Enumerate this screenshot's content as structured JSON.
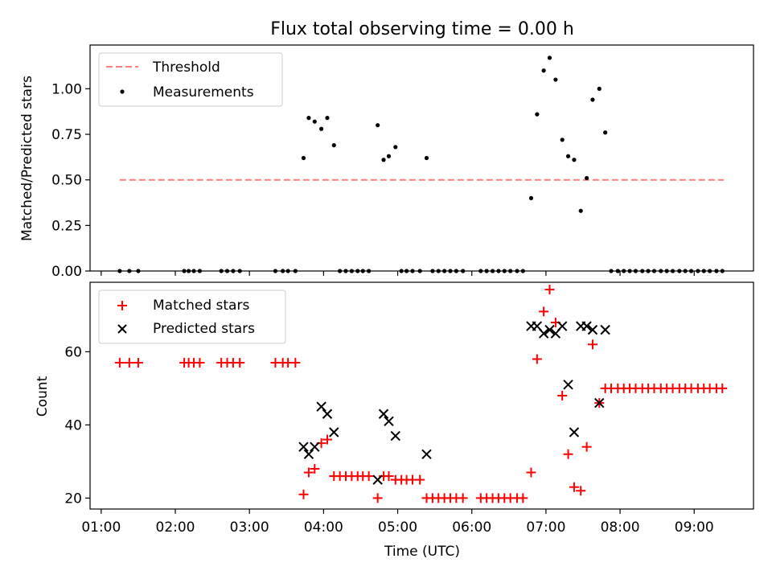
{
  "title": "Flux total observing time = 0.00 h",
  "chart_data": [
    {
      "type": "scatter",
      "ylabel": "Matched/Predicted stars",
      "xlim": [
        0.85,
        9.8
      ],
      "ylim": [
        0,
        1.24
      ],
      "yticks": [
        {
          "v": 0,
          "label": "0.00"
        },
        {
          "v": 0.25,
          "label": "0.25"
        },
        {
          "v": 0.5,
          "label": "0.50"
        },
        {
          "v": 0.75,
          "label": "0.75"
        },
        {
          "v": 1.0,
          "label": "1.00"
        }
      ],
      "threshold": {
        "name": "Threshold",
        "value": 0.5,
        "x": [
          1.25,
          9.4
        ],
        "color": "#ff7f7f"
      },
      "legend": {
        "placement": "upper-left",
        "entries": [
          "Threshold",
          "Measurements"
        ]
      },
      "series": [
        {
          "name": "Measurements",
          "color": "#000000",
          "points": [
            [
              1.25,
              0
            ],
            [
              1.38,
              0
            ],
            [
              1.5,
              0
            ],
            [
              2.12,
              0
            ],
            [
              2.18,
              0
            ],
            [
              2.25,
              0
            ],
            [
              2.33,
              0
            ],
            [
              2.62,
              0
            ],
            [
              2.7,
              0
            ],
            [
              2.78,
              0
            ],
            [
              2.87,
              0
            ],
            [
              3.35,
              0
            ],
            [
              3.45,
              0
            ],
            [
              3.52,
              0
            ],
            [
              3.62,
              0
            ],
            [
              3.73,
              0.62
            ],
            [
              3.8,
              0.84
            ],
            [
              3.88,
              0.82
            ],
            [
              3.97,
              0.78
            ],
            [
              4.05,
              0.84
            ],
            [
              4.14,
              0.69
            ],
            [
              4.22,
              0
            ],
            [
              4.3,
              0
            ],
            [
              4.38,
              0
            ],
            [
              4.46,
              0
            ],
            [
              4.53,
              0
            ],
            [
              4.61,
              0
            ],
            [
              4.73,
              0.8
            ],
            [
              4.81,
              0.61
            ],
            [
              4.88,
              0.63
            ],
            [
              4.97,
              0.68
            ],
            [
              5.05,
              0
            ],
            [
              5.12,
              0
            ],
            [
              5.2,
              0
            ],
            [
              5.3,
              0
            ],
            [
              5.39,
              0.62
            ],
            [
              5.47,
              0
            ],
            [
              5.55,
              0
            ],
            [
              5.63,
              0
            ],
            [
              5.71,
              0
            ],
            [
              5.79,
              0
            ],
            [
              5.88,
              0
            ],
            [
              6.12,
              0
            ],
            [
              6.2,
              0
            ],
            [
              6.28,
              0
            ],
            [
              6.36,
              0
            ],
            [
              6.44,
              0
            ],
            [
              6.52,
              0
            ],
            [
              6.61,
              0
            ],
            [
              6.69,
              0
            ],
            [
              6.8,
              0.4
            ],
            [
              6.88,
              0.86
            ],
            [
              6.97,
              1.1
            ],
            [
              7.05,
              1.17
            ],
            [
              7.13,
              1.05
            ],
            [
              7.22,
              0.72
            ],
            [
              7.3,
              0.63
            ],
            [
              7.38,
              0.61
            ],
            [
              7.47,
              0.33
            ],
            [
              7.55,
              0.51
            ],
            [
              7.63,
              0.94
            ],
            [
              7.72,
              1.0
            ],
            [
              7.8,
              0.76
            ],
            [
              7.88,
              0
            ],
            [
              7.97,
              0
            ],
            [
              8.05,
              0
            ],
            [
              8.13,
              0
            ],
            [
              8.21,
              0
            ],
            [
              8.3,
              0
            ],
            [
              8.38,
              0
            ],
            [
              8.46,
              0
            ],
            [
              8.55,
              0
            ],
            [
              8.63,
              0
            ],
            [
              8.71,
              0
            ],
            [
              8.8,
              0
            ],
            [
              8.88,
              0
            ],
            [
              8.96,
              0
            ],
            [
              9.05,
              0
            ],
            [
              9.13,
              0
            ],
            [
              9.21,
              0
            ],
            [
              9.3,
              0
            ],
            [
              9.38,
              0
            ]
          ]
        }
      ]
    },
    {
      "type": "scatter",
      "xlabel": "Time (UTC)",
      "ylabel": "Count",
      "xlim": [
        0.85,
        9.8
      ],
      "ylim": [
        17,
        79
      ],
      "yticks": [
        {
          "v": 20,
          "label": "20"
        },
        {
          "v": 40,
          "label": "40"
        },
        {
          "v": 60,
          "label": "60"
        }
      ],
      "xticks": [
        {
          "v": 1,
          "label": "01:00"
        },
        {
          "v": 2,
          "label": "02:00"
        },
        {
          "v": 3,
          "label": "03:00"
        },
        {
          "v": 4,
          "label": "04:00"
        },
        {
          "v": 5,
          "label": "05:00"
        },
        {
          "v": 6,
          "label": "06:00"
        },
        {
          "v": 7,
          "label": "07:00"
        },
        {
          "v": 8,
          "label": "08:00"
        },
        {
          "v": 9,
          "label": "09:00"
        }
      ],
      "legend": {
        "placement": "upper-left",
        "entries": [
          "Matched stars",
          "Predicted stars"
        ]
      },
      "series": [
        {
          "name": "Matched stars",
          "marker": "plus",
          "color": "#ff0000",
          "points": [
            [
              1.25,
              57
            ],
            [
              1.38,
              57
            ],
            [
              1.5,
              57
            ],
            [
              2.12,
              57
            ],
            [
              2.18,
              57
            ],
            [
              2.25,
              57
            ],
            [
              2.33,
              57
            ],
            [
              2.62,
              57
            ],
            [
              2.7,
              57
            ],
            [
              2.78,
              57
            ],
            [
              2.87,
              57
            ],
            [
              3.35,
              57
            ],
            [
              3.45,
              57
            ],
            [
              3.52,
              57
            ],
            [
              3.62,
              57
            ],
            [
              3.73,
              21
            ],
            [
              3.8,
              27
            ],
            [
              3.88,
              28
            ],
            [
              3.97,
              35
            ],
            [
              4.05,
              36
            ],
            [
              4.14,
              26
            ],
            [
              4.22,
              26
            ],
            [
              4.3,
              26
            ],
            [
              4.38,
              26
            ],
            [
              4.46,
              26
            ],
            [
              4.53,
              26
            ],
            [
              4.61,
              26
            ],
            [
              4.73,
              20
            ],
            [
              4.81,
              26
            ],
            [
              4.88,
              26
            ],
            [
              4.97,
              25
            ],
            [
              5.05,
              25
            ],
            [
              5.12,
              25
            ],
            [
              5.2,
              25
            ],
            [
              5.3,
              25
            ],
            [
              5.39,
              20
            ],
            [
              5.47,
              20
            ],
            [
              5.55,
              20
            ],
            [
              5.63,
              20
            ],
            [
              5.71,
              20
            ],
            [
              5.79,
              20
            ],
            [
              5.88,
              20
            ],
            [
              6.12,
              20
            ],
            [
              6.2,
              20
            ],
            [
              6.28,
              20
            ],
            [
              6.36,
              20
            ],
            [
              6.44,
              20
            ],
            [
              6.52,
              20
            ],
            [
              6.61,
              20
            ],
            [
              6.69,
              20
            ],
            [
              6.8,
              27
            ],
            [
              6.88,
              58
            ],
            [
              6.97,
              71
            ],
            [
              7.05,
              77
            ],
            [
              7.13,
              68
            ],
            [
              7.22,
              48
            ],
            [
              7.3,
              32
            ],
            [
              7.38,
              23
            ],
            [
              7.47,
              22
            ],
            [
              7.55,
              34
            ],
            [
              7.63,
              62
            ],
            [
              7.72,
              46
            ],
            [
              7.8,
              50
            ],
            [
              7.88,
              50
            ],
            [
              7.97,
              50
            ],
            [
              8.05,
              50
            ],
            [
              8.13,
              50
            ],
            [
              8.21,
              50
            ],
            [
              8.3,
              50
            ],
            [
              8.38,
              50
            ],
            [
              8.46,
              50
            ],
            [
              8.55,
              50
            ],
            [
              8.63,
              50
            ],
            [
              8.71,
              50
            ],
            [
              8.8,
              50
            ],
            [
              8.88,
              50
            ],
            [
              8.96,
              50
            ],
            [
              9.05,
              50
            ],
            [
              9.13,
              50
            ],
            [
              9.21,
              50
            ],
            [
              9.3,
              50
            ],
            [
              9.38,
              50
            ]
          ]
        },
        {
          "name": "Predicted stars",
          "marker": "x",
          "color": "#000000",
          "points": [
            [
              3.73,
              34
            ],
            [
              3.8,
              32
            ],
            [
              3.88,
              34
            ],
            [
              3.97,
              45
            ],
            [
              4.05,
              43
            ],
            [
              4.14,
              38
            ],
            [
              4.73,
              25
            ],
            [
              4.81,
              43
            ],
            [
              4.88,
              41
            ],
            [
              4.97,
              37
            ],
            [
              5.39,
              32
            ],
            [
              6.8,
              67
            ],
            [
              6.88,
              67
            ],
            [
              6.97,
              65
            ],
            [
              7.05,
              66
            ],
            [
              7.13,
              65
            ],
            [
              7.22,
              67
            ],
            [
              7.3,
              51
            ],
            [
              7.38,
              38
            ],
            [
              7.47,
              67
            ],
            [
              7.55,
              67
            ],
            [
              7.63,
              66
            ],
            [
              7.72,
              46
            ],
            [
              7.8,
              66
            ]
          ]
        }
      ]
    }
  ]
}
